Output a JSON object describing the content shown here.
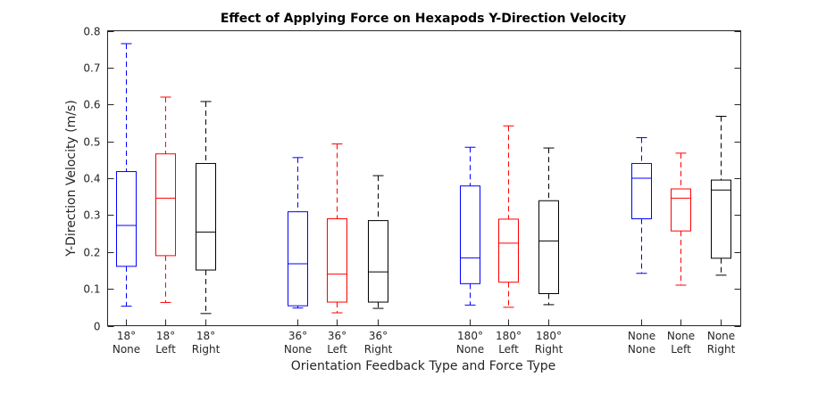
{
  "chart_data": {
    "type": "box",
    "title": "Effect of Applying Force on Hexapods Y-Direction Velocity",
    "xlabel": "Orientation Feedback Type and Force Type",
    "ylabel": "Y-Direction Velocity (m/s)",
    "ylim": [
      0,
      0.8
    ],
    "yticks": [
      "0",
      "0.1",
      "0.2",
      "0.3",
      "0.4",
      "0.5",
      "0.6",
      "0.7",
      "0.8"
    ],
    "grid": false,
    "colors": {
      "None": "#0000ff",
      "Left": "#ff0000",
      "Right": "#000000"
    },
    "boxes": [
      {
        "label_top": "18°",
        "label_bottom": "None",
        "color": "#0000ff",
        "whisker_low": 0.053,
        "q1": 0.161,
        "median": 0.272,
        "q3": 0.418,
        "whisker_high": 0.765
      },
      {
        "label_top": "18°",
        "label_bottom": "Left",
        "color": "#ff0000",
        "whisker_low": 0.063,
        "q1": 0.19,
        "median": 0.346,
        "q3": 0.466,
        "whisker_high": 0.62
      },
      {
        "label_top": "18°",
        "label_bottom": "Right",
        "color": "#000000",
        "whisker_low": 0.033,
        "q1": 0.151,
        "median": 0.254,
        "q3": 0.44,
        "whisker_high": 0.608
      },
      {
        "label_top": "36°",
        "label_bottom": "None",
        "color": "#0000ff",
        "whisker_low": 0.048,
        "q1": 0.054,
        "median": 0.168,
        "q3": 0.309,
        "whisker_high": 0.456
      },
      {
        "label_top": "36°",
        "label_bottom": "Left",
        "color": "#ff0000",
        "whisker_low": 0.035,
        "q1": 0.064,
        "median": 0.14,
        "q3": 0.29,
        "whisker_high": 0.493
      },
      {
        "label_top": "36°",
        "label_bottom": "Right",
        "color": "#000000",
        "whisker_low": 0.047,
        "q1": 0.064,
        "median": 0.146,
        "q3": 0.285,
        "whisker_high": 0.407
      },
      {
        "label_top": "180°",
        "label_bottom": "None",
        "color": "#0000ff",
        "whisker_low": 0.056,
        "q1": 0.114,
        "median": 0.184,
        "q3": 0.379,
        "whisker_high": 0.484
      },
      {
        "label_top": "180°",
        "label_bottom": "Left",
        "color": "#ff0000",
        "whisker_low": 0.05,
        "q1": 0.118,
        "median": 0.224,
        "q3": 0.289,
        "whisker_high": 0.542
      },
      {
        "label_top": "180°",
        "label_bottom": "Right",
        "color": "#000000",
        "whisker_low": 0.057,
        "q1": 0.087,
        "median": 0.23,
        "q3": 0.339,
        "whisker_high": 0.482
      },
      {
        "label_top": "None",
        "label_bottom": "None",
        "color": "#0000ff",
        "whisker_low": 0.142,
        "q1": 0.29,
        "median": 0.4,
        "q3": 0.44,
        "whisker_high": 0.51
      },
      {
        "label_top": "None",
        "label_bottom": "Left",
        "color": "#ff0000",
        "whisker_low": 0.11,
        "q1": 0.257,
        "median": 0.346,
        "q3": 0.371,
        "whisker_high": 0.468
      },
      {
        "label_top": "None",
        "label_bottom": "Right",
        "color": "#000000",
        "whisker_low": 0.137,
        "q1": 0.183,
        "median": 0.368,
        "q3": 0.395,
        "whisker_high": 0.568
      }
    ]
  }
}
